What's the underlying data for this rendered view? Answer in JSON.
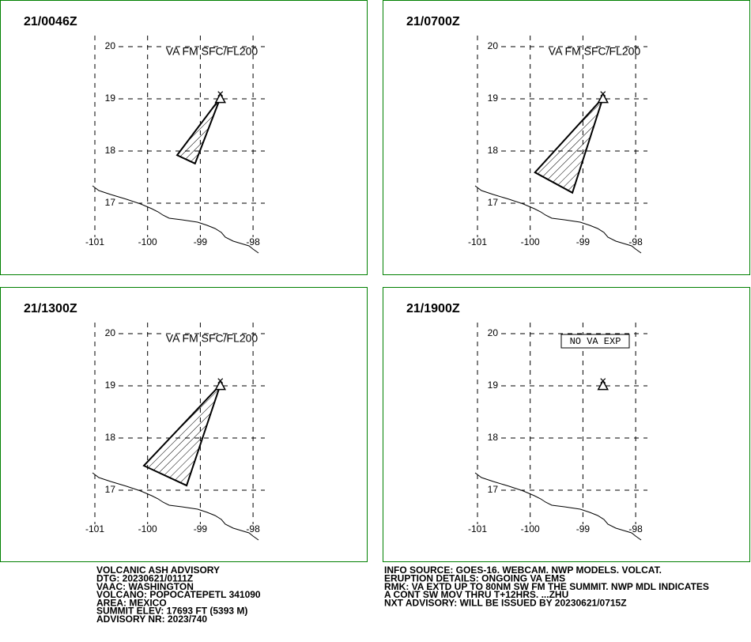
{
  "panels": [
    {
      "time": "21/0046Z",
      "annotation": "VA FM SFC/FL200",
      "ash_polygon": [
        [
          -98.62,
          19.02
        ],
        [
          -99.44,
          17.92
        ],
        [
          -99.1,
          17.76
        ]
      ]
    },
    {
      "time": "21/0700Z",
      "annotation": "VA FM SFC/FL200",
      "ash_polygon": [
        [
          -98.62,
          19.02
        ],
        [
          -99.91,
          17.59
        ],
        [
          -99.2,
          17.2
        ]
      ]
    },
    {
      "time": "21/1300Z",
      "annotation": "VA FM SFC/FL200",
      "ash_polygon": [
        [
          -98.62,
          19.02
        ],
        [
          -100.07,
          17.47
        ],
        [
          -99.26,
          17.09
        ]
      ]
    },
    {
      "time": "21/1900Z",
      "annotation": "NO VA EXP"
    }
  ],
  "lat_ticks": [
    20,
    19,
    18,
    17
  ],
  "lon_ticks": [
    -101,
    -100,
    -99,
    -98
  ],
  "volcano": [
    -98.62,
    19.02
  ],
  "advisory_left": [
    "VOLCANIC ASH ADVISORY",
    "DTG: 20230621/0111Z",
    "VAAC: WASHINGTON",
    "VOLCANO: POPOCATEPETL 341090",
    "AREA: MEXICO",
    "SUMMIT ELEV: 17693 FT (5393 M)",
    "ADVISORY NR: 2023/740"
  ],
  "advisory_right": [
    "INFO SOURCE: GOES-16. WEBCAM. NWP MODELS. VOLCAT.",
    "ERUPTION DETAILS: ONGOING VA EMS",
    "RMK: VA EXTD UP TO 80NM SW FM THE SUMMIT. NWP MDL INDICATES",
    "A CONT SW MOV THRU T+12HRS. ...ZHU",
    "NXT ADVISORY: WILL BE ISSUED BY 20230621/0715Z"
  ]
}
